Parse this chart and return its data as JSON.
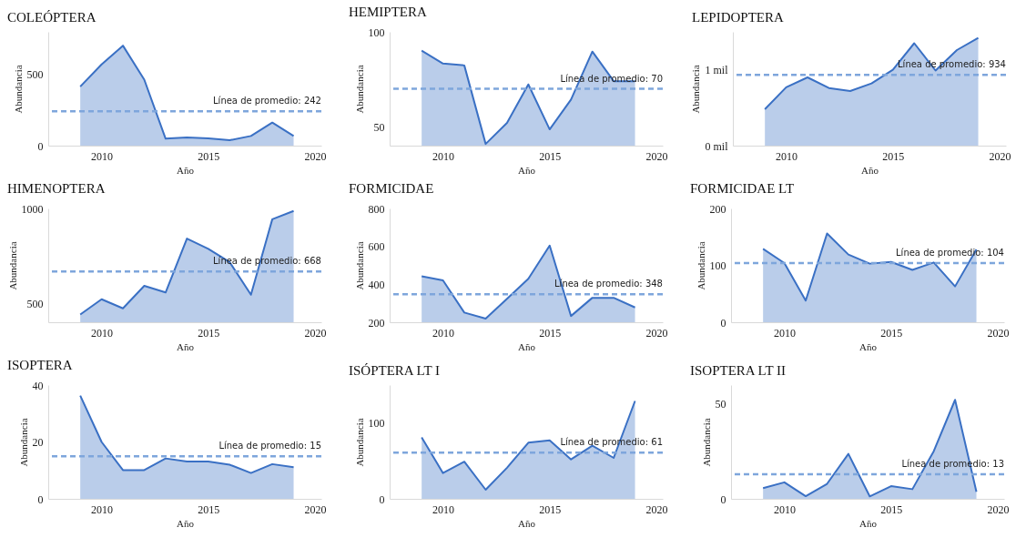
{
  "chart_data": [
    {
      "type": "area",
      "title": "COLEÓPTERA",
      "xlabel": "Año",
      "ylabel": "Abundancia",
      "x": [
        2009,
        2010,
        2011,
        2012,
        2013,
        2014,
        2015,
        2016,
        2017,
        2018,
        2019
      ],
      "series": [
        {
          "color": "#3a70c4",
          "values": [
            415,
            571,
            703,
            464,
            49,
            58,
            51,
            38,
            68,
            162,
            68
          ]
        }
      ],
      "xlim": [
        2007.5,
        2020.3
      ],
      "xticks": [
        2010,
        2015,
        2020
      ],
      "ylim": [
        0,
        800
      ],
      "yticks": [
        0,
        500
      ],
      "ref_lines": [
        {
          "axis": "y",
          "value": 242,
          "label": "Línea de promedio: 242",
          "color": "#7ea6dc",
          "line_style": "dashed"
        }
      ]
    },
    {
      "type": "area",
      "title": "HEMIPTERA",
      "xlabel": "Año",
      "ylabel": "Abundancia",
      "x": [
        2009,
        2010,
        2011,
        2012,
        2013,
        2014,
        2015,
        2016,
        2017,
        2018,
        2019
      ],
      "series": [
        {
          "color": "#3a70c4",
          "values": [
            90.1,
            83.3,
            82.3,
            40.9,
            52,
            72.3,
            48.6,
            64.3,
            89.6,
            74,
            74
          ]
        }
      ],
      "xlim": [
        2007.5,
        2020.3
      ],
      "xticks": [
        2010,
        2015,
        2020
      ],
      "ylim": [
        40,
        100
      ],
      "yticks": [
        50,
        100
      ],
      "ref_lines": [
        {
          "axis": "y",
          "value": 70,
          "label": "Línea de promedio: 70",
          "color": "#7ea6dc",
          "line_style": "dashed"
        }
      ]
    },
    {
      "type": "area",
      "title": "LEPIDOPTERA",
      "xlabel": "Año",
      "ylabel": "Abundancia",
      "x": [
        2009,
        2010,
        2011,
        2012,
        2013,
        2014,
        2015,
        2016,
        2017,
        2018,
        2019
      ],
      "series": [
        {
          "color": "#3a70c4",
          "values": [
            0.48,
            0.77,
            0.9,
            0.76,
            0.72,
            0.82,
            1.0,
            1.35,
            0.99,
            1.26,
            1.42
          ]
        }
      ],
      "xlim": [
        2007.5,
        2020.3
      ],
      "xticks": [
        2010,
        2015,
        2020
      ],
      "ylim": [
        0,
        1.5
      ],
      "yticks": [
        {
          "value": 0,
          "label": "0 mil"
        },
        {
          "value": 1,
          "label": "1 mil"
        }
      ],
      "ref_lines": [
        {
          "axis": "y",
          "value": 0.934,
          "label": "Línea de promedio: 934",
          "color": "#7ea6dc",
          "line_style": "dashed"
        }
      ]
    },
    {
      "type": "area",
      "title": "HIMENOPTERA",
      "xlabel": "Año",
      "ylabel": "Abundancia",
      "x": [
        2009,
        2010,
        2011,
        2012,
        2013,
        2014,
        2015,
        2016,
        2017,
        2018,
        2019
      ],
      "series": [
        {
          "color": "#3a70c4",
          "values": [
            441,
            521,
            473,
            592,
            557,
            841,
            787,
            717,
            545,
            943,
            987
          ]
        }
      ],
      "xlim": [
        2007.5,
        2020.3
      ],
      "xticks": [
        2010,
        2015,
        2020
      ],
      "ylim": [
        400,
        1000
      ],
      "yticks": [
        500,
        1000
      ],
      "ref_lines": [
        {
          "axis": "y",
          "value": 668,
          "label": "Línea de promedio: 668",
          "color": "#7ea6dc",
          "line_style": "dashed"
        }
      ]
    },
    {
      "type": "area",
      "title": "FORMICIDAE",
      "xlabel": "Año",
      "ylabel": "Abundancia",
      "x": [
        2009,
        2010,
        2011,
        2012,
        2013,
        2014,
        2015,
        2016,
        2017,
        2018,
        2019
      ],
      "series": [
        {
          "color": "#3a70c4",
          "values": [
            442,
            421,
            251,
            219,
            324,
            429,
            604,
            233,
            329,
            329,
            278
          ]
        }
      ],
      "xlim": [
        2007.5,
        2020.3
      ],
      "xticks": [
        2010,
        2015,
        2020
      ],
      "ylim": [
        200,
        800
      ],
      "yticks": [
        200,
        400,
        600,
        800
      ],
      "ref_lines": [
        {
          "axis": "y",
          "value": 348,
          "label": "Línea de promedio: 348",
          "color": "#7ea6dc",
          "line_style": "dashed"
        }
      ]
    },
    {
      "type": "area",
      "title": "FORMICIDAE LT",
      "xlabel": "Año",
      "ylabel": "Abundancia",
      "x": [
        2009,
        2010,
        2011,
        2012,
        2013,
        2014,
        2015,
        2016,
        2017,
        2018,
        2019
      ],
      "series": [
        {
          "color": "#3a70c4",
          "values": [
            129,
            104,
            38,
            156,
            119,
            103,
            106,
            92,
            105,
            63,
            128
          ]
        }
      ],
      "xlim": [
        2007.5,
        2020.3
      ],
      "xticks": [
        2010,
        2015,
        2020
      ],
      "ylim": [
        0,
        200
      ],
      "yticks": [
        0,
        100,
        200
      ],
      "ref_lines": [
        {
          "axis": "y",
          "value": 104,
          "label": "Línea de promedio: 104",
          "color": "#7ea6dc",
          "line_style": "dashed"
        }
      ]
    },
    {
      "type": "area",
      "title": "ISOPTERA",
      "xlabel": "Año",
      "ylabel": "Abundancia",
      "x": [
        2009,
        2010,
        2011,
        2012,
        2013,
        2014,
        2015,
        2016,
        2017,
        2018,
        2019
      ],
      "series": [
        {
          "color": "#3a70c4",
          "values": [
            36.3,
            20,
            10.1,
            10.1,
            14.2,
            13.1,
            13.1,
            12,
            9.1,
            12.2,
            11.1
          ]
        }
      ],
      "xlim": [
        2007.5,
        2020.3
      ],
      "xticks": [
        2010,
        2015,
        2020
      ],
      "ylim": [
        0,
        40
      ],
      "yticks": [
        0,
        20,
        40
      ],
      "ref_lines": [
        {
          "axis": "y",
          "value": 15,
          "label": "Línea de promedio: 15",
          "color": "#7ea6dc",
          "line_style": "dashed"
        }
      ]
    },
    {
      "type": "area",
      "title": "ISÓPTERA LT I",
      "xlabel": "Año",
      "ylabel": "Abundancia",
      "x": [
        2009,
        2010,
        2011,
        2012,
        2013,
        2014,
        2015,
        2016,
        2017,
        2018,
        2019
      ],
      "series": [
        {
          "color": "#3a70c4",
          "values": [
            81,
            34,
            49,
            12,
            41,
            74,
            77,
            52,
            70,
            54,
            129
          ]
        }
      ],
      "xlim": [
        2007.5,
        2020.3
      ],
      "xticks": [
        2010,
        2015,
        2020
      ],
      "ylim": [
        0,
        150
      ],
      "yticks": [
        0,
        100
      ],
      "ref_lines": [
        {
          "axis": "y",
          "value": 61,
          "label": "Línea de promedio: 61",
          "color": "#7ea6dc",
          "line_style": "dashed"
        }
      ]
    },
    {
      "type": "area",
      "title": "ISOPTERA LT II",
      "xlabel": "Año",
      "ylabel": "Abundancia",
      "x": [
        2009,
        2010,
        2011,
        2012,
        2013,
        2014,
        2015,
        2016,
        2017,
        2018,
        2019
      ],
      "series": [
        {
          "color": "#3a70c4",
          "values": [
            5.6,
            8.7,
            1.4,
            7.9,
            23.7,
            1.3,
            6.7,
            5.1,
            25.1,
            52.2,
            3.7
          ]
        }
      ],
      "xlim": [
        2007.5,
        2020.3
      ],
      "xticks": [
        2010,
        2015,
        2020
      ],
      "ylim": [
        0,
        60
      ],
      "yticks": [
        0,
        50
      ],
      "ref_lines": [
        {
          "axis": "y",
          "value": 13,
          "label": "Línea de promedio: 13",
          "color": "#7ea6dc",
          "line_style": "dashed"
        }
      ]
    }
  ]
}
